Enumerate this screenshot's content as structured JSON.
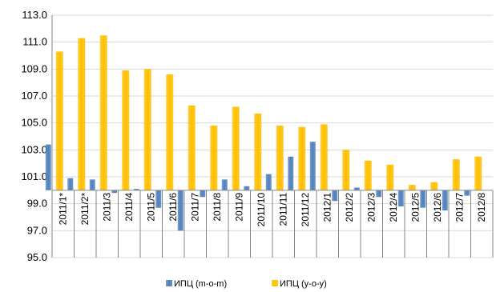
{
  "chart_data": {
    "type": "bar",
    "categories": [
      "2011/1*",
      "2011/2*",
      "2011/3",
      "2011/4",
      "2011/5",
      "2011/6",
      "2011/7",
      "2011/8",
      "2011/9",
      "2011/10",
      "2011/11",
      "2011/12",
      "2012/1",
      "2012/2",
      "2012/3",
      "2012/4",
      "2012/5",
      "2012/6",
      "2012/7",
      "2012/8"
    ],
    "series": [
      {
        "name": "ИПЦ (m-o-m)",
        "color": "#4F81BD",
        "values": [
          103.4,
          100.9,
          100.8,
          99.8,
          100.1,
          98.7,
          97.0,
          99.5,
          100.8,
          100.3,
          101.2,
          102.5,
          103.6,
          99.2,
          100.2,
          99.5,
          98.8,
          98.7,
          98.5,
          99.6
        ]
      },
      {
        "name": "ИПЦ (y-o-y)",
        "color": "#FFC000",
        "values": [
          110.3,
          111.3,
          111.5,
          108.9,
          109.0,
          108.6,
          106.3,
          104.8,
          106.2,
          105.7,
          104.8,
          104.7,
          104.9,
          103.0,
          102.2,
          101.9,
          100.4,
          100.6,
          102.3,
          102.5
        ]
      }
    ],
    "baseline": 100,
    "ylim": [
      95.0,
      113.0
    ],
    "yticks": [
      "95.0",
      "97.0",
      "99.0",
      "101.0",
      "103.0",
      "105.0",
      "107.0",
      "109.0",
      "111.0",
      "113.0"
    ],
    "grid": true,
    "legend": "bottom"
  }
}
